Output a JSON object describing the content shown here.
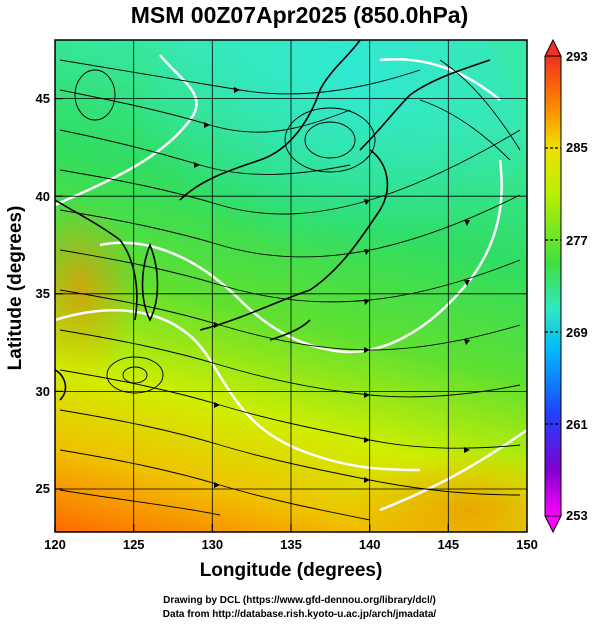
{
  "title": "MSM 00Z07Apr2025 (850.0hPa)",
  "x_axis_label": "Longitude (degrees)",
  "y_axis_label": "Latitude  (degrees)",
  "credit_line_1": "Drawing by DCL (https://www.gfd-dennou.org/library/dcl/)",
  "credit_line_2": "Data from http://database.rish.kyoto-u.ac.jp/arch/jmadata/",
  "x_ticks": [
    "120",
    "125",
    "130",
    "135",
    "140",
    "145",
    "150"
  ],
  "y_ticks": [
    "25",
    "30",
    "35",
    "40",
    "45"
  ],
  "colorbar_ticks": [
    "293",
    "285",
    "277",
    "269",
    "261",
    "253"
  ],
  "chart_data": {
    "type": "heatmap",
    "variable": "temperature with wind streamlines",
    "xlim": [
      120,
      150
    ],
    "ylim": [
      22.4,
      47.6
    ],
    "grid": true,
    "colorbar_range": [
      253,
      293
    ],
    "colorbar_location": "right",
    "colors": {
      "cold_end": "#ff00ff",
      "cool": "#2050ff",
      "mid": "#30e8c0",
      "neutral": "#40e040",
      "warm": "#d8f000",
      "hot": "#ff6000",
      "hot_end": "#f03020"
    }
  }
}
